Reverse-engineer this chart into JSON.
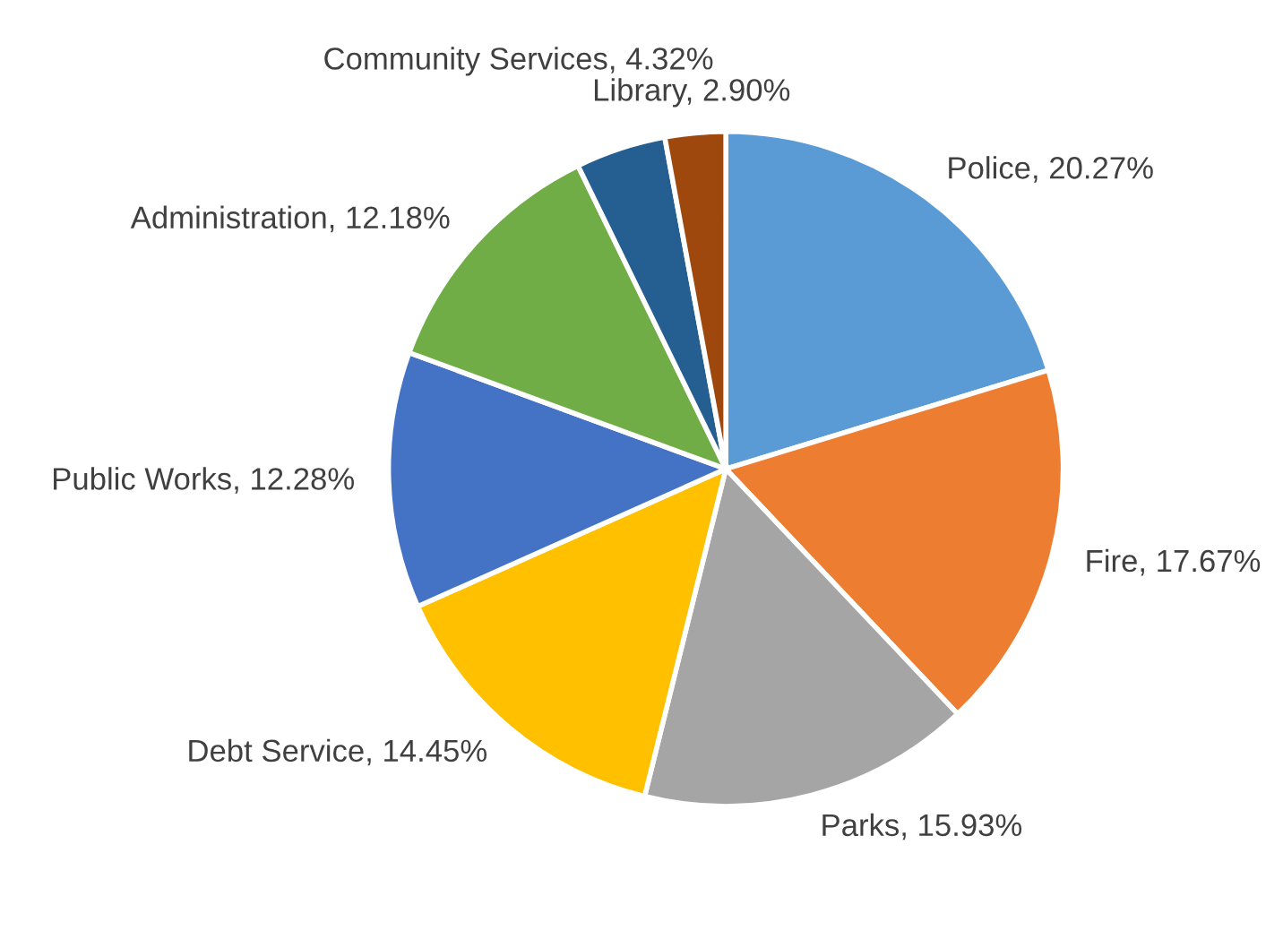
{
  "chart_data": {
    "type": "pie",
    "categories": [
      "Police",
      "Fire",
      "Parks",
      "Debt Service",
      "Public Works",
      "Administration",
      "Community Services",
      "Library"
    ],
    "values": [
      20.27,
      17.67,
      15.93,
      14.45,
      12.28,
      12.18,
      4.32,
      2.9
    ],
    "value_labels": [
      "20.27%",
      "17.67%",
      "15.93%",
      "14.45%",
      "12.28%",
      "12.18%",
      "4.32%",
      "2.90%"
    ],
    "colors": [
      "#5b9bd5",
      "#ed7d31",
      "#a5a5a5",
      "#ffc000",
      "#4472c4",
      "#70ad47",
      "#255e91",
      "#9e480e"
    ],
    "legend": false
  }
}
